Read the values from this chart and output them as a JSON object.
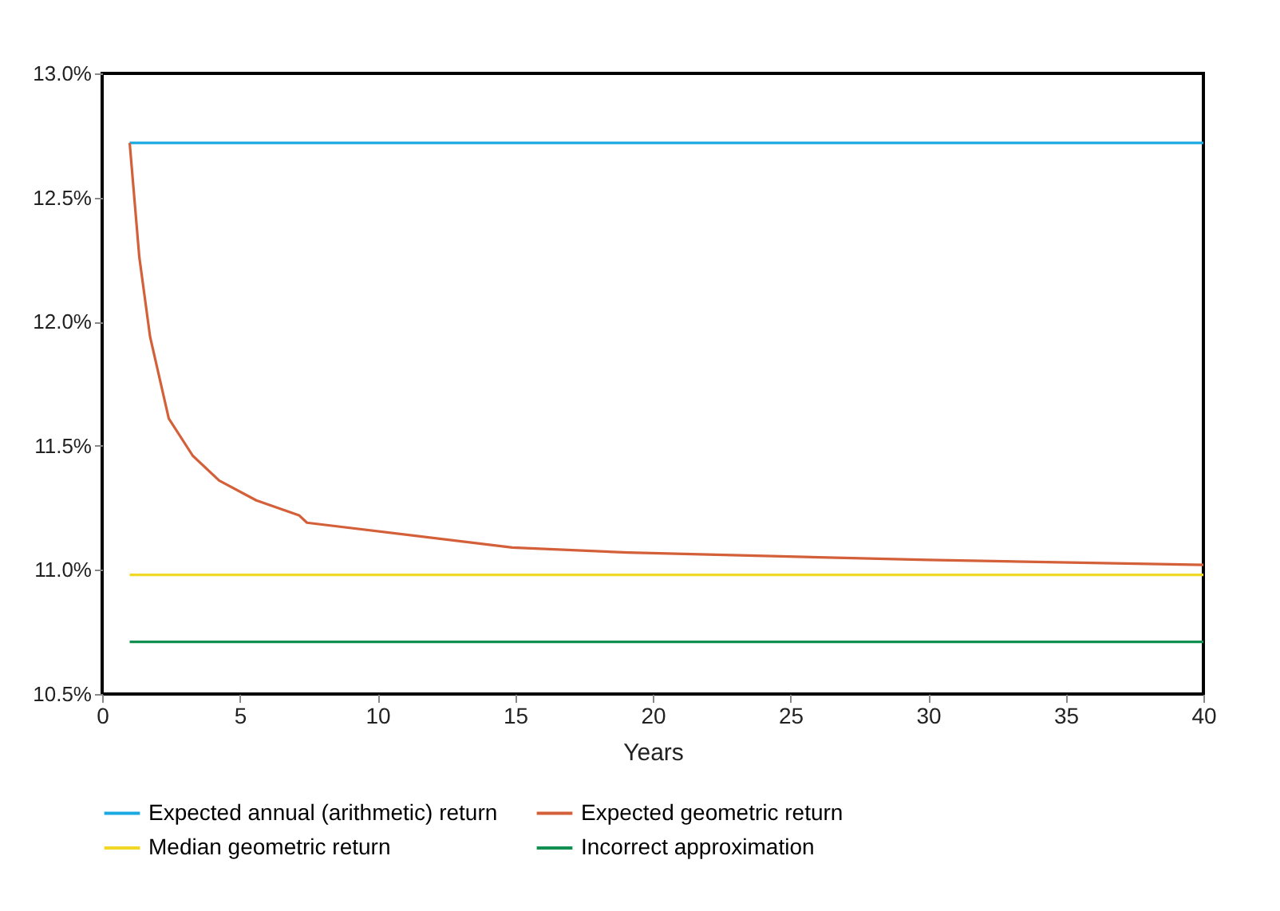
{
  "chart_data": {
    "type": "line",
    "xlabel": "Years",
    "xlim": [
      0,
      40
    ],
    "xticks": [
      0,
      5,
      10,
      15,
      20,
      25,
      30,
      35,
      40
    ],
    "ylim": [
      10.5,
      13.0
    ],
    "yticks": [
      {
        "value": 10.5,
        "label": "10.5%"
      },
      {
        "value": 11.0,
        "label": "11.0%"
      },
      {
        "value": 11.5,
        "label": "11.5%"
      },
      {
        "value": 12.0,
        "label": "12.0%"
      },
      {
        "value": 12.5,
        "label": "12.5%"
      },
      {
        "value": 13.0,
        "label": "13.0%"
      }
    ],
    "grid": false,
    "legend": "bottom",
    "marker": "none",
    "line_style": "solid",
    "series": [
      {
        "name": "Expected annual (arithmetic) return",
        "color": "#1ba9e1",
        "x": [
          1,
          40
        ],
        "values": [
          12.72,
          12.72
        ]
      },
      {
        "name": "Expected geometric return",
        "color": "#d4603a",
        "x": [
          1,
          1.35,
          1.74,
          2.42,
          3.29,
          4.25,
          5.6,
          7.15,
          7.44,
          14.9,
          19.1,
          30,
          40
        ],
        "values": [
          12.72,
          12.26,
          11.94,
          11.61,
          11.46,
          11.36,
          11.28,
          11.22,
          11.19,
          11.09,
          11.07,
          11.04,
          11.02
        ]
      },
      {
        "name": "Median geometric return",
        "color": "#f0d824",
        "x": [
          1,
          40
        ],
        "values": [
          10.98,
          10.98
        ]
      },
      {
        "name": "Incorrect approximation",
        "color": "#119052",
        "x": [
          1,
          40
        ],
        "values": [
          10.71,
          10.71
        ]
      }
    ]
  }
}
